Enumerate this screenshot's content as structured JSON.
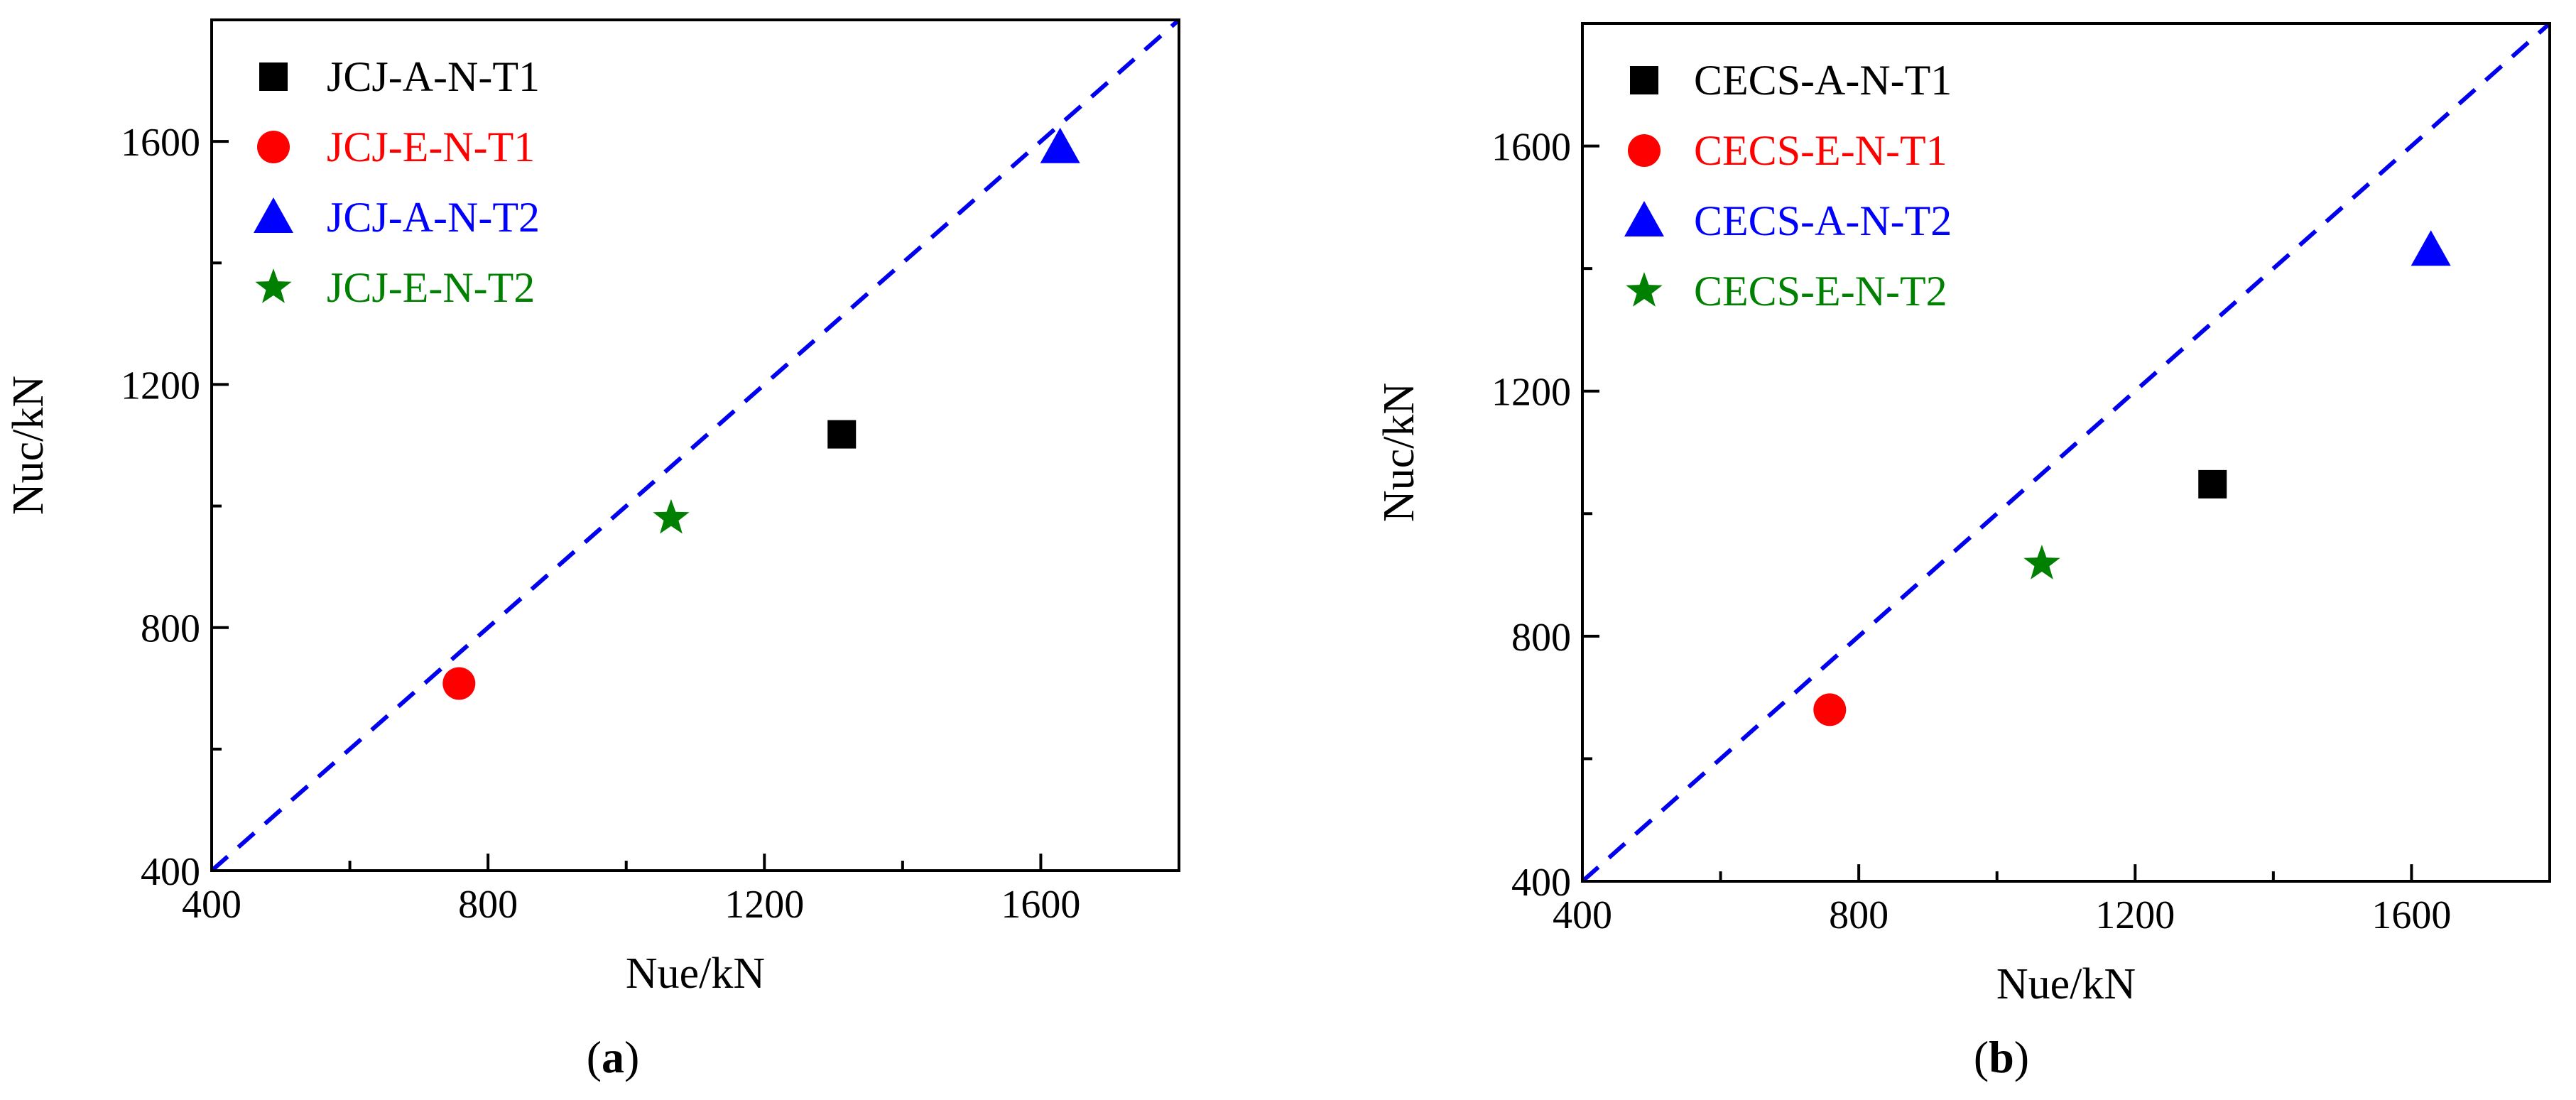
{
  "figure_labels": [
    "a",
    "b"
  ],
  "chart_data": [
    {
      "type": "scatter",
      "panel": "a",
      "xlabel": "Nue/kN",
      "ylabel": "Nuc/kN",
      "xlim": [
        400,
        1800
      ],
      "ylim": [
        400,
        1800
      ],
      "xticks": [
        400,
        800,
        1200,
        1600
      ],
      "yticks": [
        400,
        800,
        1200,
        1600
      ],
      "grid": false,
      "legend_position": "top-left",
      "reference_line": {
        "label": "y = x",
        "color": "#0000ee",
        "style": "dashed",
        "from": [
          400,
          400
        ],
        "to": [
          1800,
          1800
        ]
      },
      "series": [
        {
          "name": "JCJ-A-N-T1",
          "marker": "square",
          "color": "#000000",
          "x": 1312,
          "y": 1118
        },
        {
          "name": "JCJ-E-N-T1",
          "marker": "circle",
          "color": "#ff0000",
          "x": 758,
          "y": 708
        },
        {
          "name": "JCJ-A-N-T2",
          "marker": "triangle",
          "color": "#0000ff",
          "x": 1628,
          "y": 1590
        },
        {
          "name": "JCJ-E-N-T2",
          "marker": "star",
          "color": "#008000",
          "x": 1065,
          "y": 980
        }
      ]
    },
    {
      "type": "scatter",
      "panel": "b",
      "xlabel": "Nue/kN",
      "ylabel": "Nuc/kN",
      "xlim": [
        400,
        1800
      ],
      "ylim": [
        400,
        1800
      ],
      "xticks": [
        400,
        800,
        1200,
        1600
      ],
      "yticks": [
        400,
        800,
        1200,
        1600
      ],
      "grid": false,
      "legend_position": "top-left",
      "reference_line": {
        "label": "y = x",
        "color": "#0000ee",
        "style": "dashed",
        "from": [
          400,
          400
        ],
        "to": [
          1800,
          1800
        ]
      },
      "series": [
        {
          "name": "CECS-A-N-T1",
          "marker": "square",
          "color": "#000000",
          "x": 1312,
          "y": 1048
        },
        {
          "name": "CECS-E-N-T1",
          "marker": "circle",
          "color": "#ff0000",
          "x": 758,
          "y": 680
        },
        {
          "name": "CECS-A-N-T2",
          "marker": "triangle",
          "color": "#0000ff",
          "x": 1628,
          "y": 1430
        },
        {
          "name": "CECS-E-N-T2",
          "marker": "star",
          "color": "#008000",
          "x": 1065,
          "y": 918
        }
      ]
    }
  ]
}
